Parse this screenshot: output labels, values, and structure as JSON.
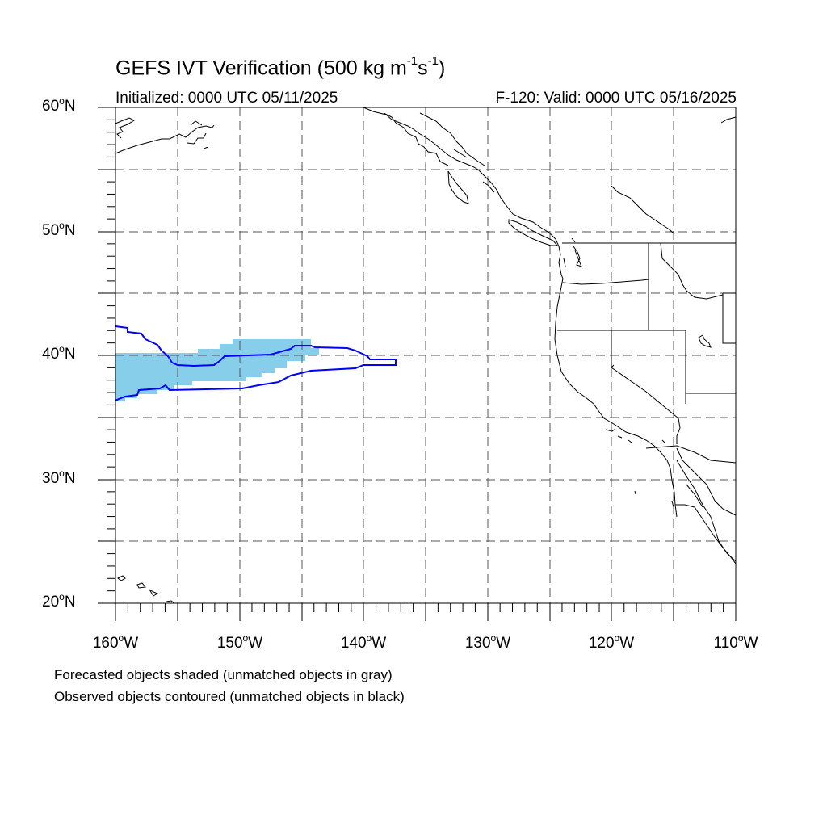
{
  "title": {
    "main": "GEFS IVT Verification (500 kg m",
    "exp1": "-1",
    "mid": "s",
    "exp2": "-1",
    "end": ")"
  },
  "subtitle": {
    "initialized": "Initialized: 0000 UTC 05/11/2025",
    "valid": "F-120: Valid: 0000 UTC 05/16/2025"
  },
  "lat_labels": [
    {
      "num": "60",
      "deg": "o",
      "dir": "N"
    },
    {
      "num": "50",
      "deg": "o",
      "dir": "N"
    },
    {
      "num": "40",
      "deg": "o",
      "dir": "N"
    },
    {
      "num": "30",
      "deg": "o",
      "dir": "N"
    },
    {
      "num": "20",
      "deg": "o",
      "dir": "N"
    }
  ],
  "lon_labels": [
    {
      "num": "160",
      "deg": "o",
      "dir": "W"
    },
    {
      "num": "150",
      "deg": "o",
      "dir": "W"
    },
    {
      "num": "140",
      "deg": "o",
      "dir": "W"
    },
    {
      "num": "130",
      "deg": "o",
      "dir": "W"
    },
    {
      "num": "120",
      "deg": "o",
      "dir": "W"
    },
    {
      "num": "110",
      "deg": "o",
      "dir": "W"
    }
  ],
  "notes": [
    "Forecasted objects shaded (unmatched objects in gray)",
    "Observed objects contoured (unmatched objects in black)"
  ],
  "colors": {
    "forecast_fill": "#87ceeb",
    "observed_contour": "#0000ff",
    "gridline": "#555555",
    "coastline": "#000000"
  }
}
